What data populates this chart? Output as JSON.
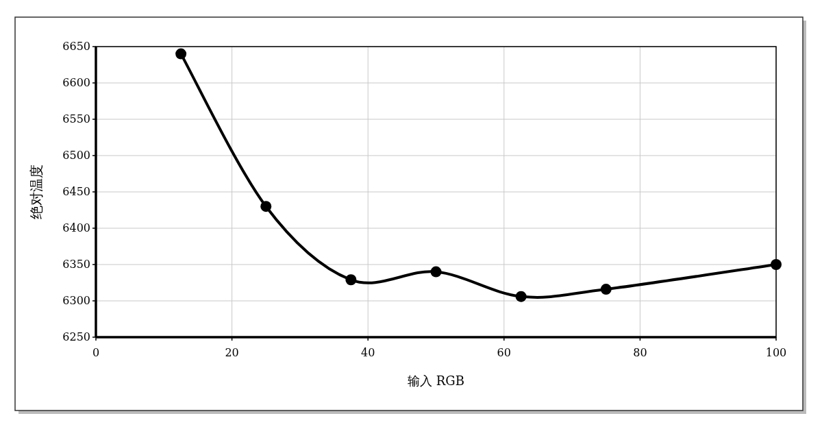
{
  "chart_data": {
    "type": "line",
    "xlabel": "输入 RGB",
    "ylabel": "绝对温度",
    "x": [
      12.5,
      25,
      37.5,
      50,
      62.5,
      75,
      100
    ],
    "series": [
      {
        "color": "#000000",
        "values": [
          6640,
          6430,
          6329,
          6340,
          6306,
          6316,
          6350
        ]
      }
    ],
    "xlim": [
      0,
      100
    ],
    "xticks": [
      0,
      20,
      40,
      60,
      80,
      100
    ],
    "ylim": [
      6250,
      6650
    ],
    "yticks": [
      6250,
      6300,
      6350,
      6400,
      6450,
      6500,
      6550,
      6600,
      6650
    ],
    "grid": true,
    "marker": "circle",
    "line_style": "solid"
  }
}
